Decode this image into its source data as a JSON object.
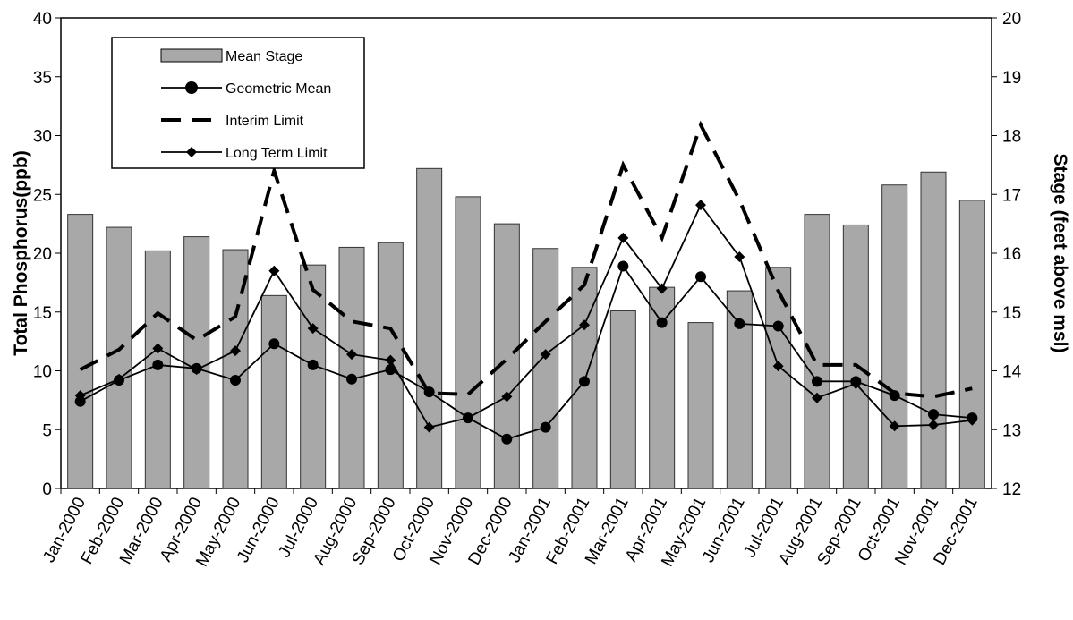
{
  "chart_data": {
    "type": "combo",
    "y_label": "Total Phosphorus(ppb)",
    "y2_label": "Stage (feet above msl)",
    "categories": [
      "Jan-2000",
      "Feb-2000",
      "Mar-2000",
      "Apr-2000",
      "May-2000",
      "Jun-2000",
      "Jul-2000",
      "Aug-2000",
      "Sep-2000",
      "Oct-2000",
      "Nov-2000",
      "Dec-2000",
      "Jan-2001",
      "Feb-2001",
      "Mar-2001",
      "Apr-2001",
      "May-2001",
      "Jun-2001",
      "Jul-2001",
      "Aug-2001",
      "Sep-2001",
      "Oct-2001",
      "Nov-2001",
      "Dec-2001"
    ],
    "ylim": [
      0,
      40
    ],
    "yticks": [
      0,
      5,
      10,
      15,
      20,
      25,
      30,
      35,
      40
    ],
    "y2lim": [
      12,
      20
    ],
    "y2ticks": [
      12,
      13,
      14,
      15,
      16,
      17,
      18,
      19,
      20
    ],
    "series": [
      {
        "name": "Mean Stage",
        "type": "bar",
        "axis": "y2",
        "color": "#a8a8a8",
        "values": [
          16.66,
          16.44,
          16.04,
          16.28,
          16.06,
          15.28,
          15.8,
          16.1,
          16.18,
          17.44,
          16.96,
          16.5,
          16.08,
          15.76,
          15.02,
          15.42,
          14.82,
          15.36,
          15.76,
          16.66,
          16.48,
          17.16,
          17.38,
          16.9
        ]
      },
      {
        "name": "Geometric Mean",
        "type": "line",
        "marker": "circle",
        "dashed": false,
        "color": "#000000",
        "values": [
          7.4,
          9.2,
          10.5,
          10.2,
          9.2,
          12.3,
          10.5,
          9.3,
          10.1,
          8.2,
          6.0,
          4.2,
          5.2,
          9.1,
          18.9,
          14.1,
          18.0,
          14.0,
          13.8,
          9.1,
          9.1,
          7.9,
          6.3,
          6.0
        ]
      },
      {
        "name": "Interim Limit",
        "type": "line",
        "marker": "none",
        "dashed": true,
        "color": "#000000",
        "values": [
          10.1,
          11.8,
          14.9,
          12.6,
          14.6,
          27.0,
          16.9,
          14.2,
          13.6,
          8.1,
          8.0,
          11.0,
          14.2,
          17.3,
          27.5,
          21.3,
          30.9,
          24.5,
          16.8,
          10.5,
          10.5,
          8.1,
          7.8,
          8.5
        ]
      },
      {
        "name": "Long Term Limit",
        "type": "line",
        "marker": "diamond",
        "dashed": false,
        "color": "#000000",
        "values": [
          7.9,
          9.3,
          11.9,
          10.1,
          11.7,
          18.5,
          13.6,
          11.4,
          10.9,
          5.2,
          6.0,
          7.8,
          11.4,
          13.9,
          21.3,
          17.0,
          24.1,
          19.7,
          10.4,
          7.7,
          8.9,
          5.3,
          5.4,
          5.8
        ]
      }
    ]
  }
}
